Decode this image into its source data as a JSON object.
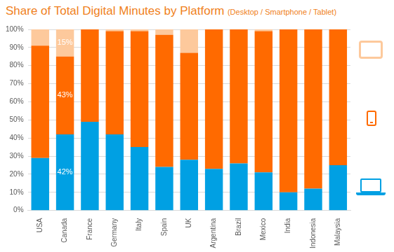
{
  "chart_data": {
    "type": "bar",
    "title": "Share of Total Digital Minutes by Platform",
    "subtitle": "(Desktop / Smartphone / Tablet)",
    "categories": [
      "USA",
      "Canada",
      "France",
      "Germany",
      "Italy",
      "Spain",
      "UK",
      "Argentina",
      "Brazil",
      "Mexico",
      "India",
      "Indonesia",
      "Malaysia"
    ],
    "series": [
      {
        "name": "Desktop",
        "color": "#00a0e3",
        "values": [
          29,
          42,
          49,
          42,
          35,
          24,
          28,
          23,
          26,
          21,
          10,
          12,
          25
        ],
        "value_labels": [
          null,
          "42%",
          null,
          null,
          null,
          null,
          null,
          null,
          null,
          null,
          null,
          null,
          null
        ]
      },
      {
        "name": "Smartphone",
        "color": "#ff6a00",
        "values": [
          62,
          43,
          51,
          57,
          64,
          73,
          59,
          77,
          74,
          78,
          90,
          88,
          75
        ],
        "value_labels": [
          null,
          "43%",
          null,
          null,
          null,
          null,
          null,
          null,
          null,
          null,
          null,
          null,
          null
        ]
      },
      {
        "name": "Tablet",
        "color": "#fdc99c",
        "values": [
          9,
          15,
          0,
          1,
          1,
          3,
          13,
          0,
          0,
          1,
          0,
          0,
          0
        ],
        "value_labels": [
          null,
          "15%",
          null,
          null,
          null,
          null,
          null,
          null,
          null,
          null,
          null,
          null,
          null
        ]
      }
    ],
    "stacked": true,
    "grid": true,
    "ylim": [
      0,
      100
    ],
    "yticks": [
      {
        "value": 0,
        "label": "0%"
      },
      {
        "value": 10,
        "label": "10%"
      },
      {
        "value": 20,
        "label": "20%"
      },
      {
        "value": 30,
        "label": "30%"
      },
      {
        "value": 40,
        "label": "40%"
      },
      {
        "value": 50,
        "label": "50%"
      },
      {
        "value": 60,
        "label": "60%"
      },
      {
        "value": 70,
        "label": "70%"
      },
      {
        "value": 80,
        "label": "80%"
      },
      {
        "value": 90,
        "label": "90%"
      },
      {
        "value": 100,
        "label": "100%"
      }
    ]
  }
}
